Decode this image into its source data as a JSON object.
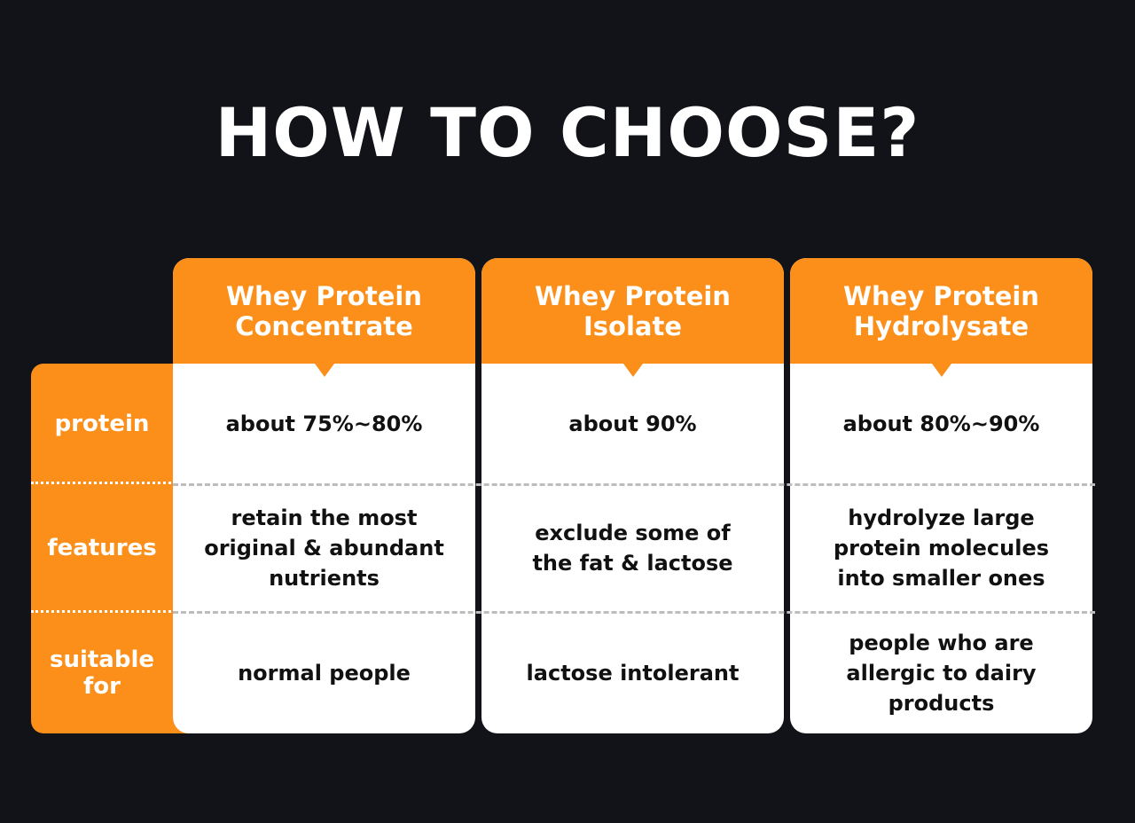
{
  "title": "HOW TO CHOOSE?",
  "colors": {
    "background": "#121318",
    "accent": "#fb8f19",
    "card": "#ffffff"
  },
  "row_labels": [
    "protein",
    "features",
    "suitable for"
  ],
  "columns": [
    {
      "header": "Whey Protein Concentrate",
      "protein": "about 75%~80%",
      "features": "retain the most original & abundant nutrients",
      "suitable_for": "normal people"
    },
    {
      "header": "Whey Protein Isolate",
      "protein": "about 90%",
      "features": "exclude some of the fat & lactose",
      "suitable_for": "lactose intolerant"
    },
    {
      "header": "Whey Protein Hydrolysate",
      "protein": "about 80%~90%",
      "features": "hydrolyze large protein molecules into smaller ones",
      "suitable_for": "people who are allergic to dairy products"
    }
  ]
}
